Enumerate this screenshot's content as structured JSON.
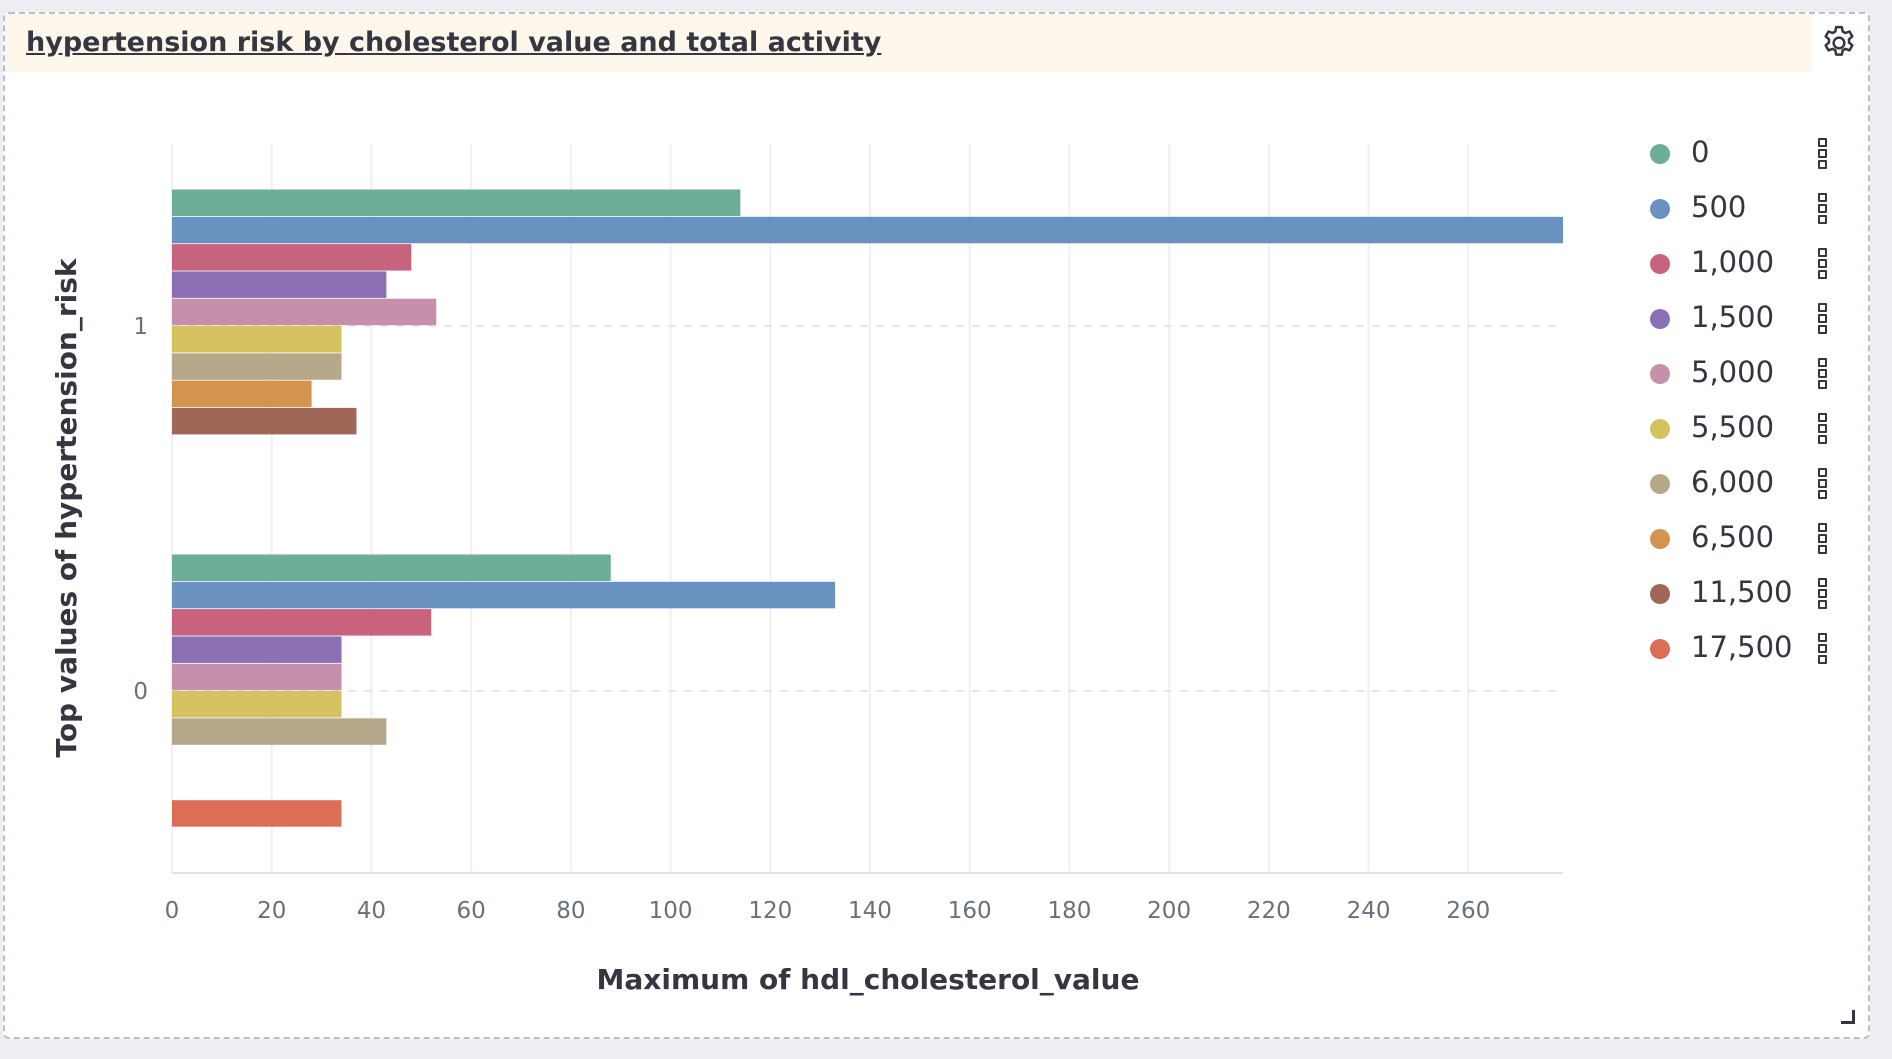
{
  "panel": {
    "title": "hypertension risk by cholesterol value and total activity",
    "settings_icon": "gear-icon",
    "resize_icon": "resize-handle-icon"
  },
  "legend": {
    "items": [
      {
        "label": "0",
        "color": "#6dae96"
      },
      {
        "label": "500",
        "color": "#6a92c0"
      },
      {
        "label": "1,000",
        "color": "#c8637e"
      },
      {
        "label": "1,500",
        "color": "#8c70b6"
      },
      {
        "label": "5,000",
        "color": "#c790aa"
      },
      {
        "label": "5,500",
        "color": "#d3c25f"
      },
      {
        "label": "6,000",
        "color": "#b7a88b"
      },
      {
        "label": "6,500",
        "color": "#d59352"
      },
      {
        "label": "11,500",
        "color": "#a06757"
      },
      {
        "label": "17,500",
        "color": "#dc6e55"
      }
    ],
    "menu_icon": "more-options-icon"
  },
  "chart_data": {
    "type": "bar",
    "orientation": "horizontal",
    "categories": [
      "1",
      "0"
    ],
    "series": [
      {
        "name": "0",
        "color": "#6dae96",
        "values": [
          114,
          88
        ]
      },
      {
        "name": "500",
        "color": "#6a92c0",
        "values": [
          279,
          133
        ]
      },
      {
        "name": "1,000",
        "color": "#c8637e",
        "values": [
          48,
          52
        ]
      },
      {
        "name": "1,500",
        "color": "#8c70b6",
        "values": [
          43,
          34
        ]
      },
      {
        "name": "5,000",
        "color": "#c790aa",
        "values": [
          53,
          34
        ]
      },
      {
        "name": "5,500",
        "color": "#d3c25f",
        "values": [
          34,
          34
        ]
      },
      {
        "name": "6,000",
        "color": "#b7a88b",
        "values": [
          34,
          43
        ]
      },
      {
        "name": "6,500",
        "color": "#d59352",
        "values": [
          28,
          null
        ]
      },
      {
        "name": "11,500",
        "color": "#a06757",
        "values": [
          37,
          null
        ]
      },
      {
        "name": "17,500",
        "color": "#dc6e55",
        "values": [
          null,
          34
        ]
      }
    ],
    "xlabel": "Maximum of hdl_cholesterol_value",
    "ylabel": "Top values of hypertension_risk",
    "xlim": [
      0,
      279
    ],
    "xticks": [
      0,
      20,
      40,
      60,
      80,
      100,
      120,
      140,
      160,
      180,
      200,
      220,
      240,
      260
    ],
    "grid": true,
    "legend_position": "right"
  }
}
